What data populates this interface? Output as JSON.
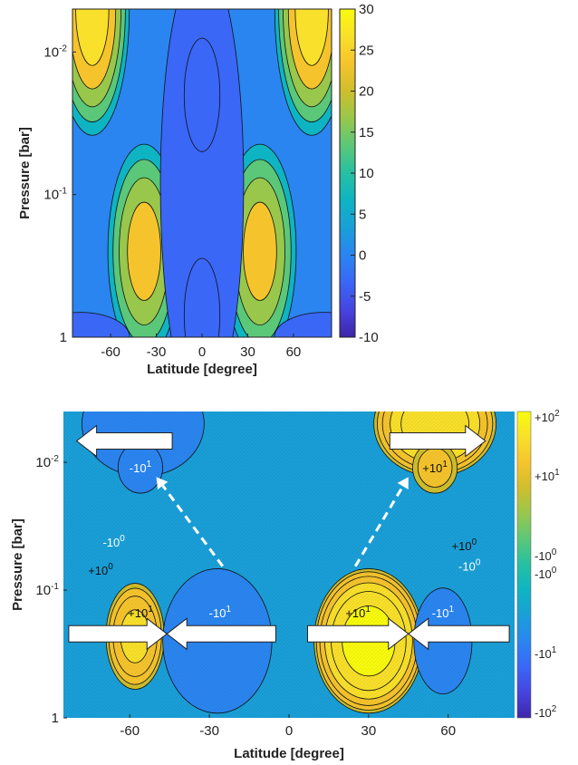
{
  "colors": {
    "parula": [
      "#3e26a8",
      "#4744e0",
      "#3a67f6",
      "#2a85f0",
      "#1a9fd8",
      "#0fb4c2",
      "#25c0a3",
      "#5bc779",
      "#98c74c",
      "#cfbe2c",
      "#f5c42d",
      "#f9e02a",
      "#f9fb0e"
    ],
    "arrow": "#ffffff",
    "contour": "#111111"
  },
  "chart_data": [
    {
      "type": "heatmap",
      "subtype": "filled-contour",
      "xlabel": "Latitude [degree]",
      "ylabel": "Pressure [bar]",
      "x_ticks": [
        -60,
        -30,
        0,
        30,
        60
      ],
      "x_tick_labels": [
        "-60",
        "-30",
        "0",
        "30",
        "60"
      ],
      "xlim": [
        -85,
        85
      ],
      "y_scale": "log",
      "y_reversed": true,
      "ylim": [
        1,
        0.005
      ],
      "y_ticks": [
        0.01,
        0.1,
        1
      ],
      "y_tick_labels": [
        {
          "base": "10",
          "exp": "-2"
        },
        {
          "base": "10",
          "exp": "-1"
        },
        {
          "base": "1",
          "exp": ""
        }
      ],
      "colorbar": {
        "range": [
          -10,
          30
        ],
        "ticks": [
          -10,
          -5,
          0,
          5,
          10,
          15,
          20,
          25,
          30
        ],
        "tick_labels": [
          "-10",
          "-5",
          "0",
          "5",
          "10",
          "15",
          "20",
          "25",
          "30"
        ]
      },
      "contour_levels": [
        -5,
        0,
        5,
        10,
        15,
        20,
        25
      ],
      "background_value": 1,
      "features": [
        {
          "lat": -72,
          "pressure": 0.005,
          "value": 30
        },
        {
          "lat": 72,
          "pressure": 0.005,
          "value": 30
        },
        {
          "lat": -38,
          "pressure": 0.25,
          "value": 24
        },
        {
          "lat": 38,
          "pressure": 0.25,
          "value": 24
        },
        {
          "lat": 0,
          "pressure": 0.085,
          "value": -11
        },
        {
          "lat": 0,
          "pressure": 0.02,
          "value": -4
        },
        {
          "lat": 0,
          "pressure": 0.7,
          "value": -4
        },
        {
          "lat": -80,
          "pressure": 1.0,
          "value": -5
        },
        {
          "lat": 80,
          "pressure": 1.0,
          "value": -5
        }
      ]
    },
    {
      "type": "heatmap",
      "subtype": "filled-contour",
      "xlabel": "Latitude [degree]",
      "ylabel": "Pressure [bar]",
      "x_ticks": [
        -60,
        -30,
        0,
        30,
        60
      ],
      "x_tick_labels": [
        "-60",
        "-30",
        "0",
        "30",
        "60"
      ],
      "xlim": [
        -85,
        85
      ],
      "y_scale": "log",
      "y_reversed": true,
      "ylim": [
        1,
        0.004
      ],
      "y_ticks": [
        0.01,
        0.1,
        1
      ],
      "y_tick_labels": [
        {
          "base": "10",
          "exp": "-2"
        },
        {
          "base": "10",
          "exp": "-1"
        },
        {
          "base": "1",
          "exp": ""
        }
      ],
      "colorbar": {
        "scale": "symlog",
        "ticks": [
          {
            "base": "+10",
            "exp": "2"
          },
          {
            "base": "+10",
            "exp": "1"
          },
          {
            "base": "-10",
            "exp": "0"
          },
          {
            "base": "-10",
            "exp": "0"
          },
          {
            "base": "-10",
            "exp": "1"
          },
          {
            "base": "-10",
            "exp": "2"
          }
        ]
      },
      "annotations": [
        {
          "base": "-10",
          "exp": "1",
          "lat": -56,
          "pressure": 0.011,
          "color": "#ffffff"
        },
        {
          "base": "+10",
          "exp": "1",
          "lat": 55,
          "pressure": 0.011,
          "color": "#111111"
        },
        {
          "base": "-10",
          "exp": "0",
          "lat": -66,
          "pressure": 0.042,
          "color": "#ffffff"
        },
        {
          "base": "+10",
          "exp": "0",
          "lat": 66,
          "pressure": 0.045,
          "color": "#111111"
        },
        {
          "base": "+10",
          "exp": "0",
          "lat": -71,
          "pressure": 0.07,
          "color": "#111111"
        },
        {
          "base": "-10",
          "exp": "0",
          "lat": 68,
          "pressure": 0.065,
          "color": "#ffffff"
        },
        {
          "base": "+10",
          "exp": "1",
          "lat": -56,
          "pressure": 0.15,
          "color": "#111111"
        },
        {
          "base": "-10",
          "exp": "1",
          "lat": -26,
          "pressure": 0.15,
          "color": "#ffffff"
        },
        {
          "base": "+10",
          "exp": "1",
          "lat": 26,
          "pressure": 0.15,
          "color": "#111111"
        },
        {
          "base": "-10",
          "exp": "1",
          "lat": 58,
          "pressure": 0.15,
          "color": "#ffffff"
        }
      ],
      "arrows": [
        {
          "from_lat": -44,
          "to_lat": -80,
          "pressure": 0.0068,
          "style": "solid-white"
        },
        {
          "from_lat": 38,
          "to_lat": 74,
          "pressure": 0.0068,
          "style": "solid-white"
        },
        {
          "from_lat": -83,
          "to_lat": -46,
          "pressure": 0.22,
          "style": "solid-white"
        },
        {
          "from_lat": -5,
          "to_lat": -46,
          "pressure": 0.22,
          "style": "solid-white"
        },
        {
          "from_lat": 7,
          "to_lat": 45,
          "pressure": 0.22,
          "style": "solid-white"
        },
        {
          "from_lat": 83,
          "to_lat": 45,
          "pressure": 0.22,
          "style": "solid-white"
        },
        {
          "from_lat": -25,
          "from_pressure": 0.065,
          "to_lat": -50,
          "to_pressure": 0.013,
          "style": "dashed-white"
        },
        {
          "from_lat": 25,
          "from_pressure": 0.065,
          "to_lat": 45,
          "to_pressure": 0.013,
          "style": "dashed-white"
        }
      ],
      "features": [
        {
          "lat": -55,
          "pressure": 0.005,
          "value": -70
        },
        {
          "lat": 55,
          "pressure": 0.005,
          "value": 70
        },
        {
          "lat": -56,
          "pressure": 0.011,
          "value": -22
        },
        {
          "lat": 55,
          "pressure": 0.011,
          "value": 22
        },
        {
          "lat": -58,
          "pressure": 0.23,
          "value": 45
        },
        {
          "lat": 30,
          "pressure": 0.25,
          "value": 90
        },
        {
          "lat": -27,
          "pressure": 0.25,
          "value": -90
        },
        {
          "lat": 58,
          "pressure": 0.25,
          "value": -45
        }
      ]
    }
  ]
}
